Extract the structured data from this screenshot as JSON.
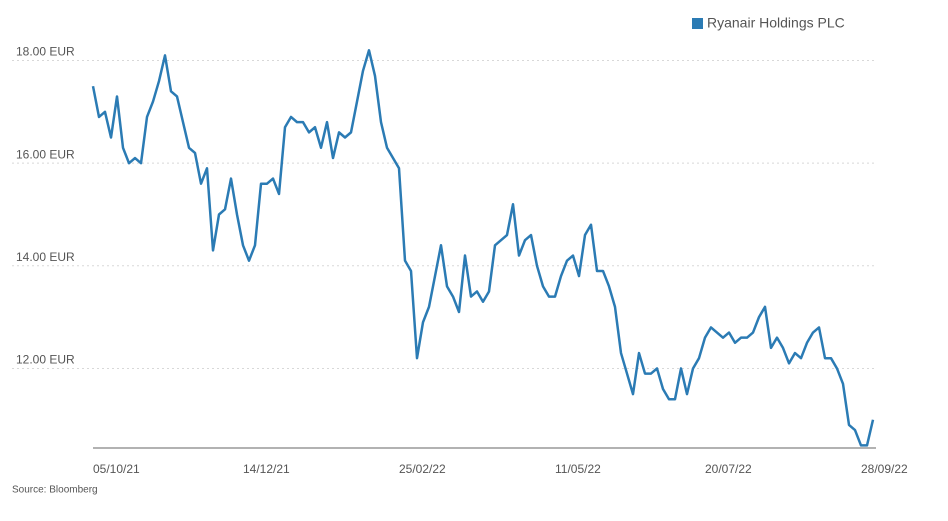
{
  "chart_data": {
    "type": "line",
    "source": "Source: Bloomberg",
    "categories": [
      "05/10/21",
      null,
      null,
      null,
      null,
      null,
      null,
      null,
      null,
      null,
      null,
      null,
      null,
      null,
      null,
      null,
      null,
      null,
      null,
      null,
      null,
      null,
      null,
      null,
      null,
      "14/12/21",
      null,
      null,
      null,
      null,
      null,
      null,
      null,
      null,
      null,
      null,
      null,
      null,
      null,
      null,
      null,
      null,
      null,
      null,
      null,
      null,
      null,
      null,
      null,
      null,
      null,
      "25/02/22",
      null,
      null,
      null,
      null,
      null,
      null,
      null,
      null,
      null,
      null,
      null,
      null,
      null,
      null,
      null,
      null,
      null,
      null,
      null,
      null,
      null,
      null,
      null,
      null,
      null,
      "11/05/22",
      null,
      null,
      null,
      null,
      null,
      null,
      null,
      null,
      null,
      null,
      null,
      null,
      null,
      null,
      null,
      null,
      null,
      null,
      null,
      null,
      null,
      null,
      null,
      null,
      "20/07/22",
      null,
      null,
      null,
      null,
      null,
      null,
      null,
      null,
      null,
      null,
      null,
      null,
      null,
      null,
      null,
      null,
      null,
      null,
      null,
      null,
      null,
      null,
      null,
      null,
      null,
      "28/09/22",
      null,
      null
    ],
    "series": [
      {
        "name": "Ryanair Holdings PLC",
        "color": "#2b7bb4",
        "values": [
          17.5,
          16.9,
          17.0,
          16.5,
          17.3,
          16.3,
          16.0,
          16.1,
          16.0,
          16.9,
          17.2,
          17.6,
          18.1,
          17.4,
          17.3,
          16.8,
          16.3,
          16.2,
          15.6,
          15.9,
          14.3,
          15.0,
          15.1,
          15.7,
          15.0,
          14.4,
          14.1,
          14.4,
          15.6,
          15.6,
          15.7,
          15.4,
          16.7,
          16.9,
          16.8,
          16.8,
          16.6,
          16.7,
          16.3,
          16.8,
          16.1,
          16.6,
          16.5,
          16.6,
          17.2,
          17.8,
          18.2,
          17.7,
          16.8,
          16.3,
          16.1,
          15.9,
          14.1,
          13.9,
          12.2,
          12.9,
          13.2,
          13.8,
          14.4,
          13.6,
          13.4,
          13.1,
          14.2,
          13.4,
          13.5,
          13.3,
          13.5,
          14.4,
          14.5,
          14.6,
          15.2,
          14.2,
          14.5,
          14.6,
          14.0,
          13.6,
          13.4,
          13.4,
          13.8,
          14.1,
          14.2,
          13.8,
          14.6,
          14.8,
          13.9,
          13.9,
          13.6,
          13.2,
          12.3,
          11.9,
          11.5,
          12.3,
          11.9,
          11.9,
          12.0,
          11.6,
          11.4,
          11.4,
          12.0,
          11.5,
          12.0,
          12.2,
          12.6,
          12.8,
          12.7,
          12.6,
          12.7,
          12.5,
          12.6,
          12.6,
          12.7,
          13.0,
          13.2,
          12.4,
          12.6,
          12.4,
          12.1,
          12.3,
          12.2,
          12.5,
          12.7,
          12.8,
          12.2,
          12.2,
          12.0,
          11.7,
          10.9,
          10.8,
          10.5,
          10.5,
          11.0
        ]
      }
    ],
    "ylim": [
      10.45,
      18.4
    ],
    "yticks": [
      {
        "value": 12,
        "label": "12.00 EUR"
      },
      {
        "value": 14,
        "label": "14.00 EUR"
      },
      {
        "value": 16,
        "label": "16.00 EUR"
      },
      {
        "value": 18,
        "label": "18.00 EUR"
      }
    ],
    "grid": true,
    "legend": "top-right"
  }
}
